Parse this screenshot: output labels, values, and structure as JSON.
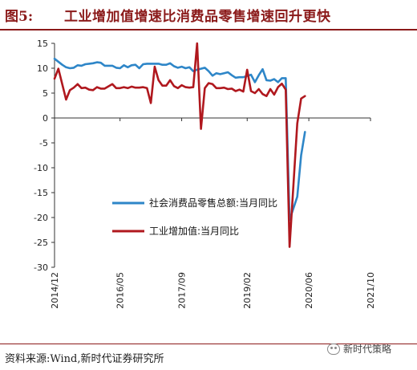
{
  "header": {
    "fig_num": "图5:",
    "title": "工业增加值增速比消费品零售增速回升更快"
  },
  "footer": {
    "source": "资料来源:Wind,新时代证券研究所",
    "watermark": "新时代策略"
  },
  "colors": {
    "retail": "#2e86c8",
    "industrial": "#b0181e",
    "header": "#8b1a1a"
  },
  "chart_data": {
    "type": "line",
    "ylim": [
      -30,
      15
    ],
    "yticks": [
      15,
      10,
      5,
      0,
      -5,
      -10,
      -15,
      -20,
      -25,
      -30
    ],
    "xticks": [
      "2014/12",
      "2016/05",
      "2017/09",
      "2019/02",
      "2020/06",
      "2021/10"
    ],
    "x_range": [
      "2014-12",
      "2021-10"
    ],
    "grid": false,
    "legend_position": "lower-center",
    "series": [
      {
        "name": "社会消费品零售总额:当月同比",
        "color": "#2e86c8",
        "x": [
          "2014-12",
          "2015-02",
          "2015-03",
          "2015-04",
          "2015-05",
          "2015-06",
          "2015-07",
          "2015-08",
          "2015-09",
          "2015-10",
          "2015-11",
          "2015-12",
          "2016-01",
          "2016-03",
          "2016-04",
          "2016-05",
          "2016-06",
          "2016-07",
          "2016-08",
          "2016-09",
          "2016-10",
          "2016-11",
          "2016-12",
          "2017-03",
          "2017-04",
          "2017-05",
          "2017-06",
          "2017-07",
          "2017-08",
          "2017-09",
          "2017-10",
          "2017-11",
          "2017-12",
          "2018-01",
          "2018-03",
          "2018-04",
          "2018-05",
          "2018-06",
          "2018-07",
          "2018-08",
          "2018-09",
          "2018-10",
          "2018-11",
          "2018-12",
          "2019-01",
          "2019-03",
          "2019-04",
          "2019-05",
          "2019-06",
          "2019-07",
          "2019-08",
          "2019-09",
          "2019-10",
          "2019-11",
          "2019-12",
          "2020-01",
          "2020-03",
          "2020-04",
          "2020-05"
        ],
        "values": [
          11.9,
          10.7,
          10.2,
          10.0,
          10.1,
          10.6,
          10.5,
          10.8,
          10.9,
          11.0,
          11.2,
          11.1,
          10.5,
          10.5,
          10.1,
          10.0,
          10.6,
          10.2,
          10.6,
          10.7,
          10.0,
          10.8,
          10.9,
          10.9,
          10.7,
          10.7,
          11.0,
          10.4,
          10.1,
          10.3,
          10.0,
          10.2,
          9.4,
          9.7,
          10.1,
          9.4,
          8.5,
          9.0,
          8.8,
          9.0,
          9.2,
          8.6,
          8.1,
          8.2,
          8.2,
          8.7,
          7.2,
          8.6,
          9.8,
          7.6,
          7.5,
          7.8,
          7.2,
          8.0,
          8.0,
          -20.5,
          -15.8,
          -7.5,
          -2.8
        ]
      },
      {
        "name": "工业增加值:当月同比",
        "color": "#b0181e",
        "x": [
          "2014-12",
          "2015-01",
          "2015-02",
          "2015-03",
          "2015-04",
          "2015-05",
          "2015-06",
          "2015-07",
          "2015-08",
          "2015-09",
          "2015-10",
          "2015-11",
          "2015-12",
          "2016-01",
          "2016-03",
          "2016-04",
          "2016-05",
          "2016-06",
          "2016-07",
          "2016-08",
          "2016-09",
          "2016-10",
          "2016-11",
          "2016-12",
          "2017-01",
          "2017-02",
          "2017-03",
          "2017-04",
          "2017-05",
          "2017-06",
          "2017-07",
          "2017-08",
          "2017-09",
          "2017-10",
          "2017-11",
          "2017-12",
          "2018-01",
          "2018-02",
          "2018-03",
          "2018-04",
          "2018-05",
          "2018-06",
          "2018-07",
          "2018-08",
          "2018-09",
          "2018-10",
          "2018-11",
          "2018-12",
          "2019-01",
          "2019-02",
          "2019-03",
          "2019-04",
          "2019-05",
          "2019-06",
          "2019-07",
          "2019-08",
          "2019-09",
          "2019-10",
          "2019-11",
          "2019-12",
          "2020-01",
          "2020-02",
          "2020-03",
          "2020-04",
          "2020-05"
        ],
        "values": [
          7.9,
          9.9,
          6.8,
          3.7,
          5.6,
          6.1,
          6.8,
          6.0,
          6.1,
          5.7,
          5.6,
          6.2,
          5.9,
          5.9,
          6.8,
          6.0,
          6.0,
          6.2,
          6.0,
          6.3,
          6.1,
          6.1,
          6.2,
          6.0,
          3.0,
          10.3,
          7.6,
          6.5,
          6.5,
          7.6,
          6.4,
          6.0,
          6.6,
          6.2,
          6.1,
          6.2,
          15.0,
          -2.2,
          6.0,
          7.0,
          6.8,
          6.0,
          6.0,
          6.1,
          5.8,
          5.9,
          5.4,
          5.7,
          5.3,
          9.7,
          5.4,
          5.0,
          5.8,
          4.8,
          4.4,
          5.8,
          4.7,
          6.2,
          6.9,
          5.7,
          -25.9,
          -13.5,
          -1.1,
          3.9,
          4.4
        ]
      }
    ]
  }
}
